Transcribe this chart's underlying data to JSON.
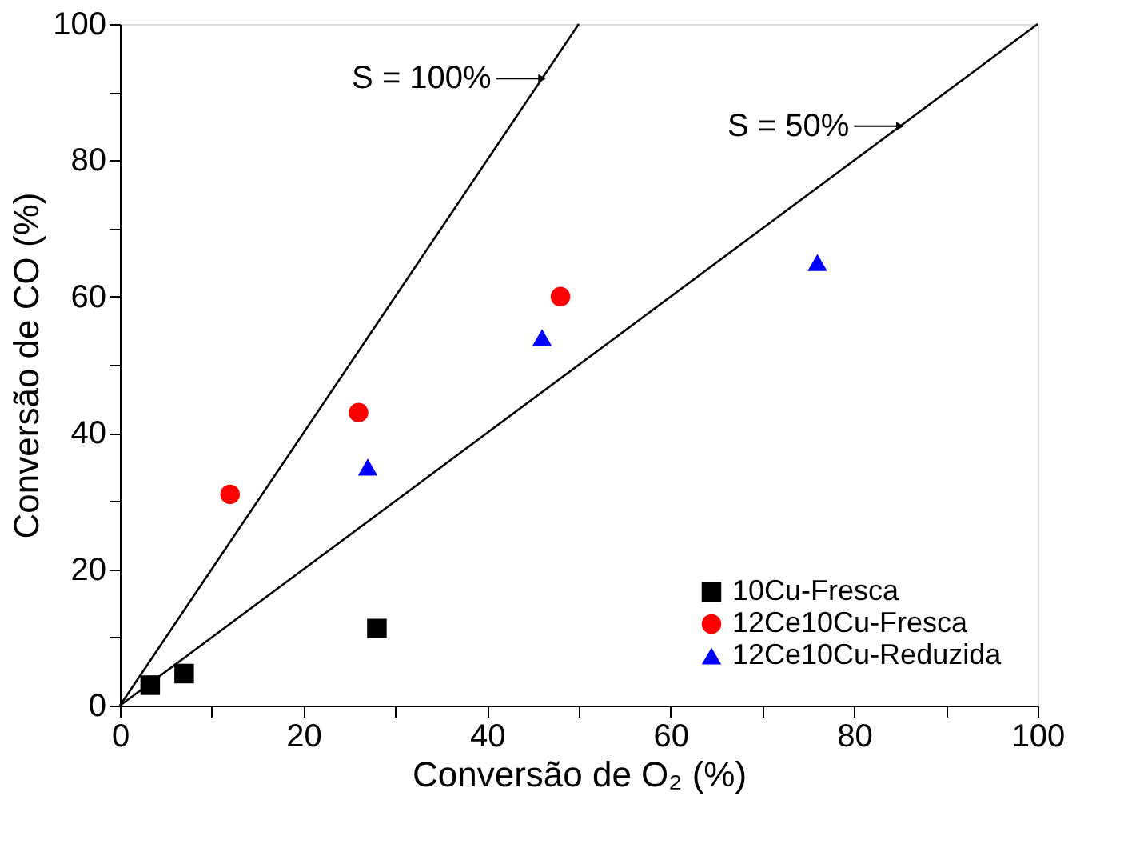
{
  "chart_data": {
    "type": "scatter",
    "xlabel": "Conversão de O₂ (%)",
    "ylabel": "Conversão de CO (%)",
    "xlim": [
      0,
      100
    ],
    "ylim": [
      0,
      100
    ],
    "xticks": [
      0,
      {
        "value": 10,
        "label": null
      },
      20,
      {
        "value": 30,
        "label": null
      },
      40,
      {
        "value": 50,
        "label": null
      },
      60,
      {
        "value": 70,
        "label": null
      },
      80,
      {
        "value": 90,
        "label": null
      },
      100
    ],
    "yticks": [
      0,
      {
        "value": 10,
        "label": null
      },
      20,
      {
        "value": 30,
        "label": null
      },
      40,
      {
        "value": 50,
        "label": null
      },
      60,
      {
        "value": 70,
        "label": null
      },
      80,
      {
        "value": 90,
        "label": null
      },
      100
    ],
    "grid": false,
    "legend": "bottom right",
    "series": [
      {
        "type": "line",
        "color": "#000000",
        "x": [
          0,
          50
        ],
        "values": [
          0,
          100
        ],
        "marker": "none",
        "line_style": "solid"
      },
      {
        "type": "line",
        "color": "#000000",
        "x": [
          0,
          100
        ],
        "values": [
          0,
          100
        ],
        "marker": "none",
        "line_style": "solid"
      },
      {
        "name": "10Cu-Fresca",
        "color": "#000000",
        "marker": "square",
        "x": [
          3.3,
          7,
          28
        ],
        "values": [
          3,
          4.7,
          11.3
        ]
      },
      {
        "name": "12Ce10Cu-Fresca",
        "color": "#ff0000",
        "marker": "circle",
        "x": [
          12,
          26,
          48
        ],
        "values": [
          31,
          43,
          60
        ]
      },
      {
        "name": "12Ce10Cu-Reduzida",
        "color": "#0000ff",
        "marker": "triangle",
        "x": [
          27,
          46,
          76
        ],
        "values": [
          35,
          54,
          65
        ]
      }
    ],
    "annotations": [
      {
        "text": "S = 100%",
        "x": 46,
        "y": 92
      },
      {
        "text": "S = 50%",
        "x": 85,
        "y": 85
      }
    ]
  }
}
